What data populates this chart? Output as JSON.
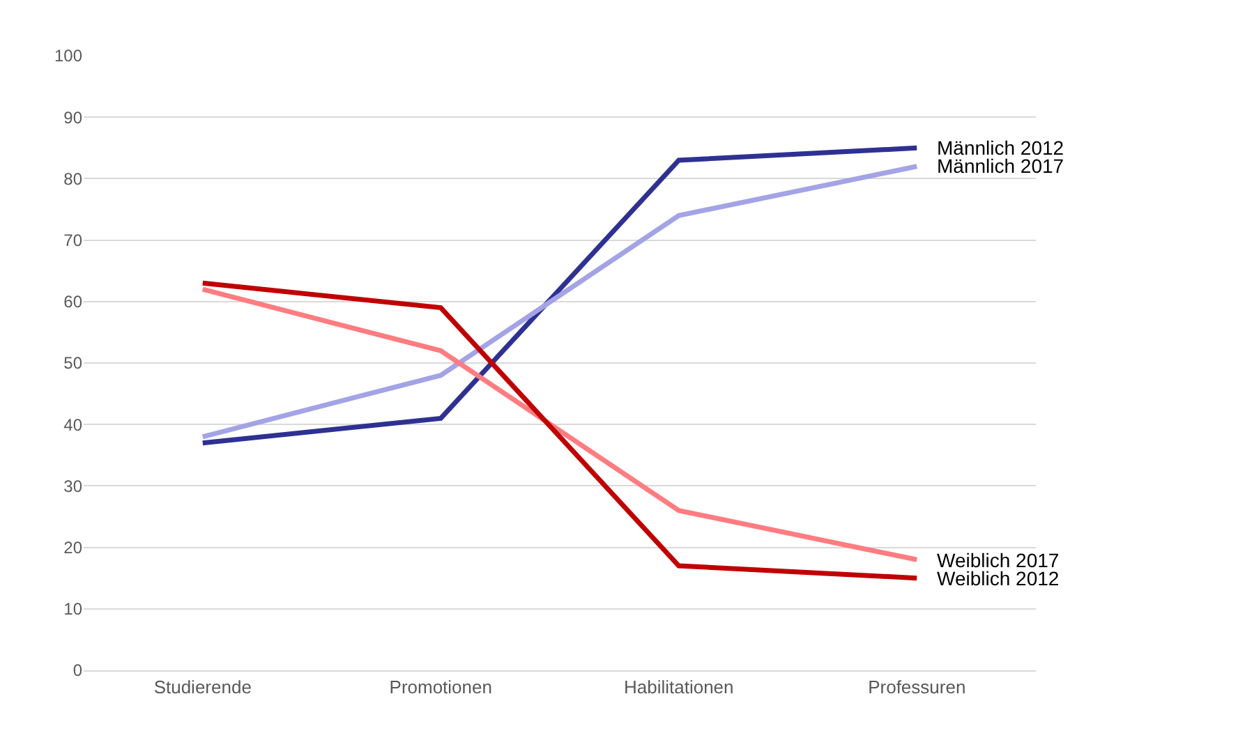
{
  "chart_data": {
    "type": "line",
    "categories": [
      "Studierende",
      "Promotionen",
      "Habilitationen",
      "Professuren"
    ],
    "series": [
      {
        "name": "Männlich 2012",
        "color": "#2e3192",
        "values": [
          37,
          41,
          83,
          85
        ]
      },
      {
        "name": "Männlich 2017",
        "color": "#a3a3e6",
        "values": [
          38,
          48,
          74,
          82
        ]
      },
      {
        "name": "Weiblich 2017",
        "color": "#ff7c80",
        "values": [
          62,
          52,
          26,
          18
        ]
      },
      {
        "name": "Weiblich 2012",
        "color": "#c00000",
        "values": [
          63,
          59,
          17,
          15
        ]
      }
    ],
    "ylim": [
      0,
      100
    ],
    "yticks": [
      0,
      10,
      20,
      30,
      40,
      50,
      60,
      70,
      80,
      90,
      100
    ],
    "grid": "y",
    "legend": false,
    "marker": "none",
    "line_style": "solid"
  }
}
